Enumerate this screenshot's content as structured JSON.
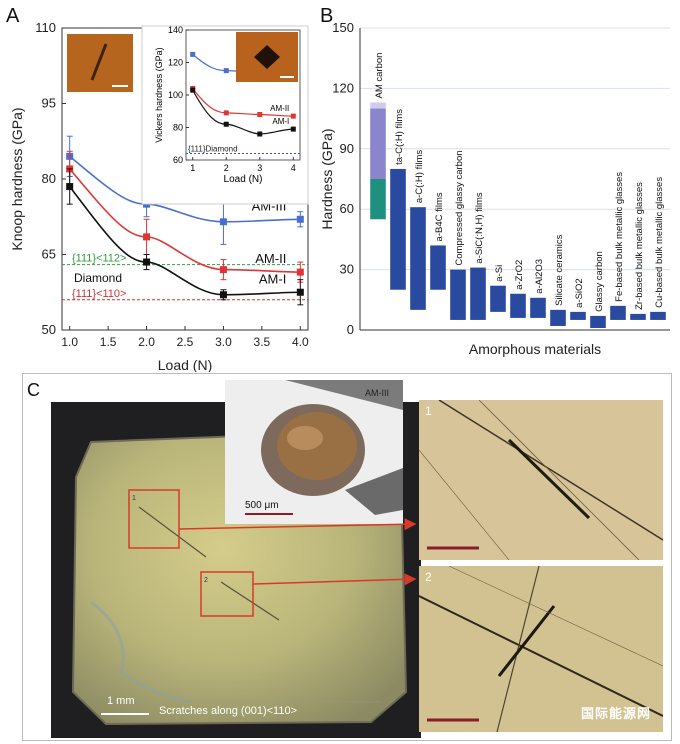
{
  "panelA": {
    "label": "A",
    "chart_data": {
      "type": "line",
      "xlabel": "Load (N)",
      "ylabel": "Knoop hardness (GPa)",
      "xlim": [
        0.9,
        4.1
      ],
      "ylim": [
        50,
        110
      ],
      "xticks": [
        "1.0",
        "1.5",
        "2.0",
        "2.5",
        "3.0",
        "3.5",
        "4.0"
      ],
      "yticks": [
        "50",
        "65",
        "80",
        "95",
        "110"
      ],
      "series": [
        {
          "name": "AM-III",
          "color": "#4a6fd0",
          "x": [
            1,
            2,
            3,
            4
          ],
          "y": [
            84.5,
            75,
            71.5,
            72
          ],
          "err": [
            4,
            2.5,
            4.5,
            1.5
          ]
        },
        {
          "name": "AM-II",
          "color": "#e03535",
          "x": [
            1,
            2,
            3,
            4
          ],
          "y": [
            82,
            68.5,
            62,
            61.5
          ],
          "err": [
            3.5,
            3.5,
            2,
            2
          ]
        },
        {
          "name": "AM-I",
          "color": "#111111",
          "x": [
            1,
            2,
            3,
            4
          ],
          "y": [
            78.5,
            63.5,
            57,
            57.5
          ],
          "err": [
            3.5,
            1.5,
            1,
            2.5
          ]
        }
      ],
      "reference_lines": [
        {
          "label": "{111}<112>",
          "y": 63,
          "color": "#2e9e3e"
        },
        {
          "label": "{111}<110>",
          "y": 56,
          "color": "#d23030"
        }
      ],
      "annotation": "Diamond"
    },
    "inset": {
      "chart_data": {
        "type": "line",
        "xlabel": "Load (N)",
        "ylabel": "Vickers hardness (GPa)",
        "xlim": [
          0.8,
          4.2
        ],
        "ylim": [
          60,
          140
        ],
        "xticks": [
          "1",
          "2",
          "3",
          "4"
        ],
        "yticks": [
          "60",
          "80",
          "100",
          "120",
          "140"
        ],
        "series": [
          {
            "name": "AM-III",
            "color": "#4a6fd0",
            "x": [
              1,
              2,
              3,
              4
            ],
            "y": [
              125,
              115,
              114,
              114
            ]
          },
          {
            "name": "AM-II",
            "color": "#e03535",
            "x": [
              1,
              2,
              3,
              4
            ],
            "y": [
              104,
              89,
              88,
              87
            ]
          },
          {
            "name": "AM-I",
            "color": "#111111",
            "x": [
              1,
              2,
              3,
              4
            ],
            "y": [
              103,
              82,
              76,
              79
            ]
          }
        ],
        "reference_lines": [
          {
            "label": "{111}Diamond",
            "y": 64,
            "color": "#3455c4"
          }
        ]
      }
    }
  },
  "panelB": {
    "label": "B",
    "chart_data": {
      "type": "bar",
      "xlabel": "Amorphous materials",
      "ylabel": "Hardness (GPa)",
      "ylim": [
        0,
        150
      ],
      "yticks": [
        "0",
        "30",
        "60",
        "90",
        "120",
        "150"
      ],
      "categories": [
        "AM carbon",
        "ta-C(:H) films",
        "a-C(:H) films",
        "a-B4C films",
        "Compressed glassy carbon",
        "a-SiC(:N,H) films",
        "a-Si",
        "a-ZrO2",
        "a-Al2O3",
        "Silicate ceramics",
        "a-SiO2",
        "Glassy carbon",
        "Fe-based bulk metallic glasses",
        "Zr-based bulk metallic glasses",
        "Cu-based bulk metallic glasses"
      ],
      "ranges": [
        [
          55,
          113
        ],
        [
          20,
          80
        ],
        [
          10,
          61
        ],
        [
          20,
          42
        ],
        [
          5,
          30
        ],
        [
          5,
          31
        ],
        [
          9,
          22
        ],
        [
          6,
          18
        ],
        [
          6,
          16
        ],
        [
          2,
          10
        ],
        [
          5,
          9
        ],
        [
          1,
          7
        ],
        [
          5,
          12
        ],
        [
          5,
          8
        ],
        [
          5,
          9
        ]
      ],
      "segments_first": [
        {
          "from": 55,
          "to": 75,
          "color": "#1f8f80"
        },
        {
          "from": 75,
          "to": 110,
          "color": "#8a85cc"
        },
        {
          "from": 110,
          "to": 113,
          "color": "#d0ccea"
        }
      ],
      "bar_color": "#2a4aa0"
    }
  },
  "panelC": {
    "label": "C",
    "inset_label": "AM-III",
    "scale_inset": "500 μm",
    "scale_main": "1 mm",
    "caption": "Scratches along (001)<110>",
    "box1": "1",
    "box2": "2",
    "watermark": "国际能源网"
  }
}
